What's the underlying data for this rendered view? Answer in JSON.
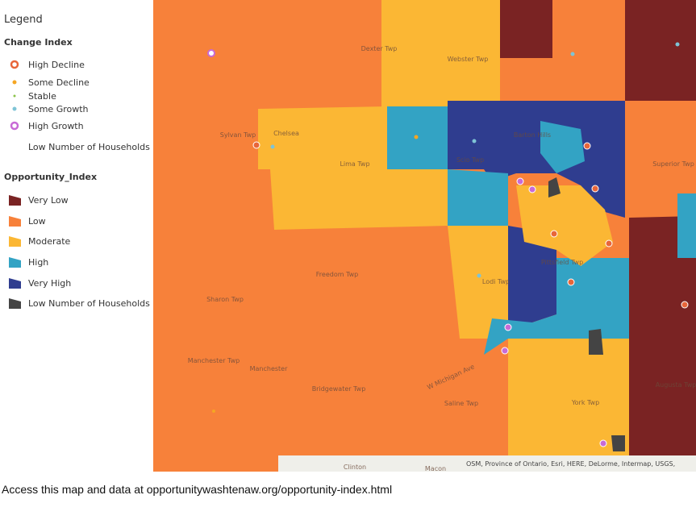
{
  "legend": {
    "title": "Legend",
    "change_index": {
      "title": "Change Index",
      "items": [
        {
          "label": "High Decline",
          "color": "#e8663a"
        },
        {
          "label": "Some Decline",
          "color": "#f5a623"
        },
        {
          "label": "Stable",
          "color": "#8bc34a"
        },
        {
          "label": "Some Growth",
          "color": "#7fc4d6"
        },
        {
          "label": "High Growth",
          "color": "#c86bd6"
        },
        {
          "label": "Low Number of Households"
        }
      ]
    },
    "opportunity_index": {
      "title": "Opportunity_Index",
      "items": [
        {
          "label": "Very Low",
          "color": "#7a2323"
        },
        {
          "label": "Low",
          "color": "#f7813a"
        },
        {
          "label": "Moderate",
          "color": "#fbb734"
        },
        {
          "label": "High",
          "color": "#33a3c4"
        },
        {
          "label": "Very High",
          "color": "#2f3d8f"
        },
        {
          "label": "Low Number of Households",
          "color": "#444444"
        }
      ]
    }
  },
  "map": {
    "labels": [
      "Dexter Twp",
      "Webster Twp",
      "Sylvan Twp",
      "Chelsea",
      "Lima Twp",
      "Scio Twp",
      "Barton Hills",
      "Superior Twp",
      "Freedom Twp",
      "Lodi Twp",
      "Pittsfield Twp",
      "Sharon Twp",
      "Manchester Twp",
      "Manchester",
      "Bridgewater Twp",
      "Saline Twp",
      "York Twp",
      "Augusta Twp",
      "W Michigan Ave",
      "Clinton",
      "Macon"
    ],
    "attribution": "OSM, Province of Ontario, Esri, HERE, DeLorme, Intermap, USGS,"
  },
  "caption": "Access this map and data at opportunitywashtenaw.org/opportunity-index.html"
}
